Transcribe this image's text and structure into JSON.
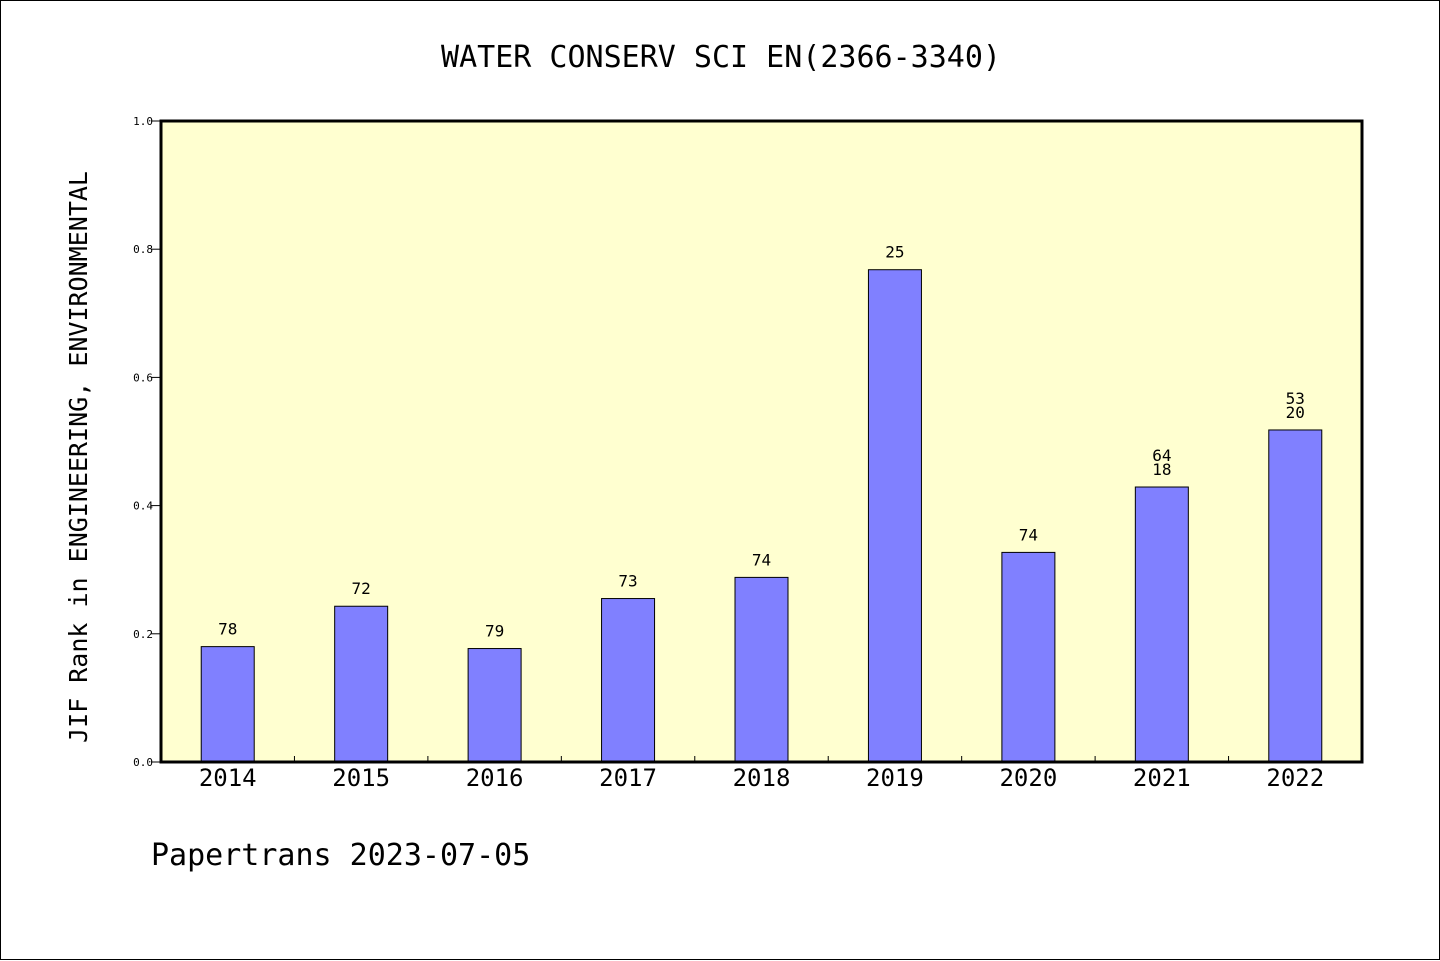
{
  "chart_data": {
    "type": "bar",
    "title": "WATER CONSERV SCI EN(2366-3340)",
    "ylabel": "JIF Rank in ENGINEERING, ENVIRONMENTAL",
    "xlabel": "",
    "ylim": [
      0,
      1.0
    ],
    "yticks": [
      "0.0",
      "0.2",
      "0.4",
      "0.6",
      "0.8",
      "1.0"
    ],
    "ytick_values": [
      0.0,
      0.2,
      0.4,
      0.6,
      0.8,
      1.0
    ],
    "categories": [
      "2014",
      "2015",
      "2016",
      "2017",
      "2018",
      "2019",
      "2020",
      "2021",
      "2022"
    ],
    "values": [
      0.18,
      0.243,
      0.177,
      0.255,
      0.288,
      0.768,
      0.327,
      0.429,
      0.518
    ],
    "bar_labels": [
      [
        "78"
      ],
      [
        "72"
      ],
      [
        "79"
      ],
      [
        "73"
      ],
      [
        "74"
      ],
      [
        "25"
      ],
      [
        "74"
      ],
      [
        "64",
        "18"
      ],
      [
        "53",
        "20"
      ]
    ],
    "grid": false,
    "plot_background": "#ffffd0",
    "bar_color": "#8080ff",
    "bar_edge_color": "#000000"
  },
  "footer": {
    "text": "Papertrans 2023-07-05"
  }
}
